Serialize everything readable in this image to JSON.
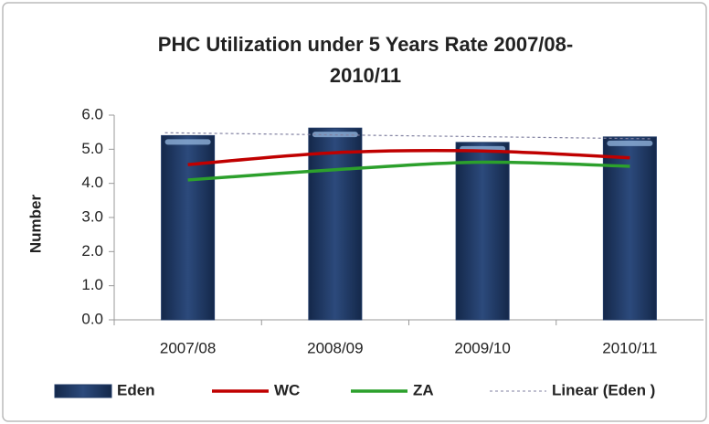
{
  "chart_data": {
    "type": "bar",
    "title": [
      "PHC Utilization under 5 Years Rate 2007/08-",
      "2010/11"
    ],
    "y_label": "Number",
    "categories": [
      "2007/08",
      "2008/09",
      "2009/10",
      "2010/11"
    ],
    "series": [
      {
        "name": "Eden",
        "kind": "bar",
        "color": "#1f3864",
        "values": [
          5.4,
          5.62,
          5.2,
          5.36
        ]
      },
      {
        "name": "WC",
        "kind": "line",
        "color": "#c00000",
        "values": [
          4.55,
          4.9,
          4.95,
          4.75
        ]
      },
      {
        "name": "ZA",
        "kind": "line",
        "color": "#2ca02c",
        "values": [
          4.1,
          4.4,
          4.62,
          4.5
        ]
      }
    ],
    "trendline": {
      "name": "Linear (Eden )",
      "of": 0,
      "color": "#8080a0"
    },
    "ylim": [
      0,
      6
    ],
    "yticks": [
      {
        "value": 0,
        "label": "0.0"
      },
      {
        "value": 1,
        "label": "1.0"
      },
      {
        "value": 2,
        "label": "2.0"
      },
      {
        "value": 3,
        "label": "3.0"
      },
      {
        "value": 4,
        "label": "4.0"
      },
      {
        "value": 5,
        "label": "5.0"
      },
      {
        "value": 6,
        "label": "6.0"
      }
    ],
    "grid": false,
    "legend": "bottom"
  }
}
